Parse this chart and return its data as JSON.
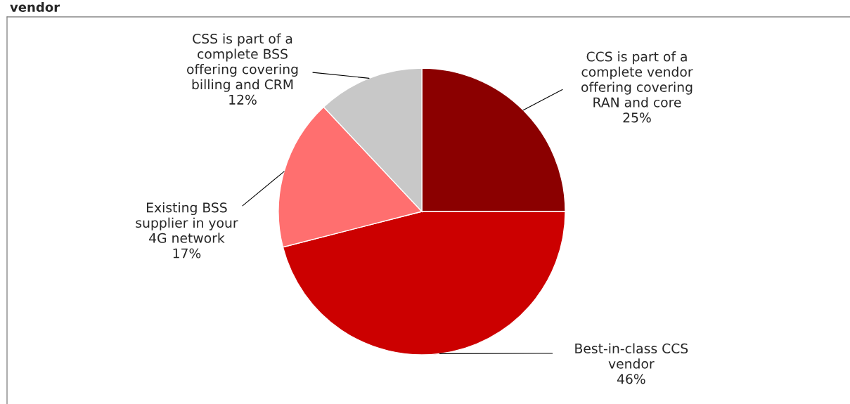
{
  "chart_data": {
    "type": "pie",
    "title": "vendor",
    "categories": [
      "CCS is part of a\ncomplete vendor\noffering covering\nRAN and core",
      "Best-in-class CCS\nvendor",
      "Existing BSS\nsupplier in your\n4G network",
      "CSS is part of a\ncomplete BSS\noffering covering\nbilling and CRM"
    ],
    "values": [
      25,
      46,
      17,
      12
    ],
    "value_labels": [
      "25%",
      "46%",
      "17%",
      "12%"
    ],
    "colors": [
      "#8b0000",
      "#cc0000",
      "#ff6f6f",
      "#c8c8c8"
    ],
    "legend": false
  }
}
